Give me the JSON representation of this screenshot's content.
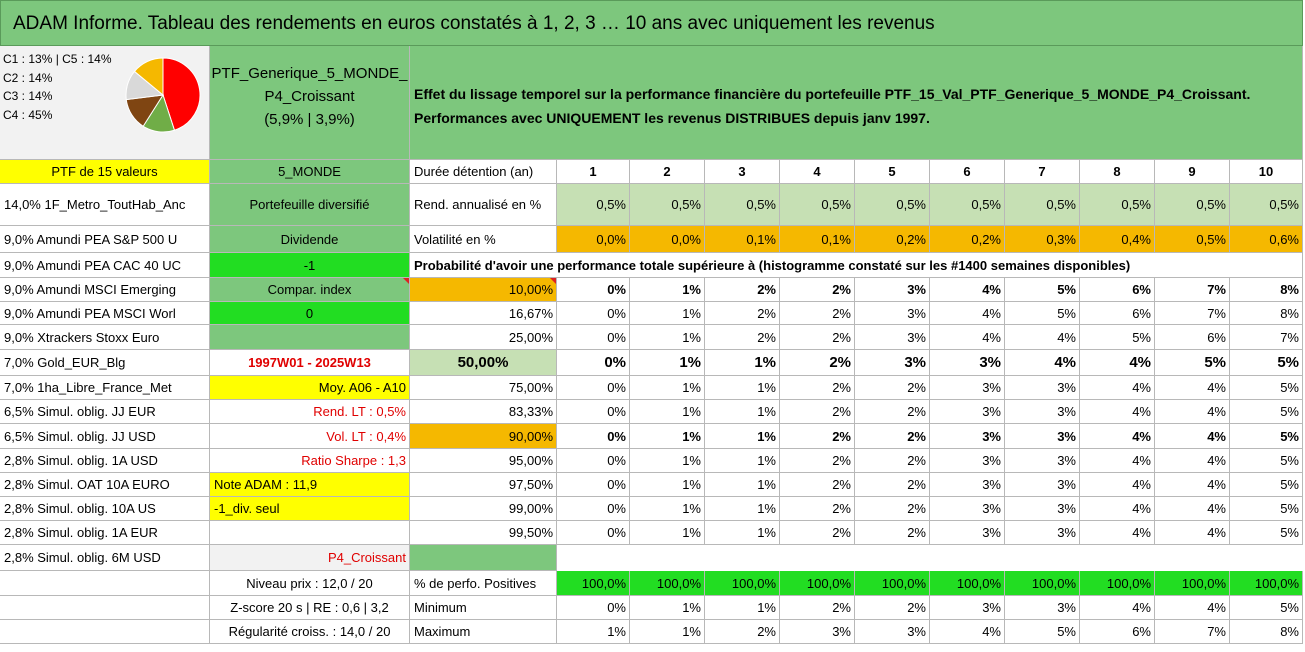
{
  "title": "ADAM Informe. Tableau des rendements en euros constatés à 1, 2, 3 … 10 ans avec uniquement les revenus",
  "classes": [
    "C1 : 13% | C5 : 14%",
    "C2 : 14%",
    "C3 : 14%",
    "C4 : 45%"
  ],
  "pie": [
    {
      "label": "C4",
      "value": 45,
      "color": "#ff0000"
    },
    {
      "label": "C3",
      "value": 14,
      "color": "#70ad47"
    },
    {
      "label": "C2",
      "value": 14,
      "color": "#7f4512"
    },
    {
      "label": "C1",
      "value": 13,
      "color": "#d9d9d9"
    },
    {
      "label": "C5",
      "value": 14,
      "color": "#f5b800"
    }
  ],
  "portfolio": {
    "name_line1": "PTF_Generique_5_MONDE_",
    "name_line2": "P4_Croissant",
    "name_line3": "(5,9% | 3,9%)",
    "zone": "5_MONDE",
    "type": "Portefeuille diversifié",
    "dividend": "Dividende",
    "dividend_val": "-1",
    "compar": "Compar. index",
    "compar_val": "0",
    "period": "1997W01 - 2025W13",
    "moy": "Moy. A06 - A10",
    "rend_lt": "Rend. LT : 0,5%",
    "vol_lt": "Vol. LT : 0,4%",
    "sharpe": "Ratio Sharpe : 1,3",
    "note": "Note ADAM : 11,9",
    "div_seul": "-1_div. seul",
    "profile": "P4_Croissant",
    "niveau": "Niveau prix : 12,0 / 20",
    "zscore": "Z-score 20 s | RE : 0,6 | 3,2",
    "regularite": "Régularité croiss. : 14,0 / 20"
  },
  "description_line1": "Effet du lissage temporel sur la performance financière du portefeuille PTF_15_Val_PTF_Generique_5_MONDE_P4_Croissant.",
  "description_line2": "Performances avec UNIQUEMENT les revenus DISTRIBUES depuis janv 1997.",
  "ptf_header": "PTF de 15 valeurs",
  "holdings": [
    "14,0% 1F_Metro_ToutHab_Anc",
    "9,0% Amundi PEA S&P 500 U",
    "9,0% Amundi PEA CAC 40 UC",
    "9,0% Amundi MSCI Emerging",
    "9,0% Amundi PEA MSCI Worl",
    "9,0% Xtrackers Stoxx Euro",
    "7,0% Gold_EUR_Blg",
    "7,0% 1ha_Libre_France_Met",
    "6,5% Simul. oblig. JJ EUR",
    "6,5% Simul. oblig. JJ USD",
    "2,8% Simul. oblig. 1A USD",
    "2,8% Simul. OAT 10A EURO",
    "2,8% Simul. oblig. 10A US",
    "2,8% Simul. oblig. 1A EUR",
    "2,8% Simul. oblig. 6M USD"
  ],
  "stats": {
    "duree_label": "Durée détention (an)",
    "years": [
      "1",
      "2",
      "3",
      "4",
      "5",
      "6",
      "7",
      "8",
      "9",
      "10"
    ],
    "rend_label": "Rend. annualisé en %",
    "rend": [
      "0,5%",
      "0,5%",
      "0,5%",
      "0,5%",
      "0,5%",
      "0,5%",
      "0,5%",
      "0,5%",
      "0,5%",
      "0,5%"
    ],
    "vol_label": "Volatilité en %",
    "vol": [
      "0,0%",
      "0,0%",
      "0,1%",
      "0,1%",
      "0,2%",
      "0,2%",
      "0,3%",
      "0,4%",
      "0,5%",
      "0,6%"
    ],
    "prob_title": "Probabilité d'avoir une performance totale supérieure à (histogramme constaté sur les #1400 semaines disponibles)"
  },
  "quantiles": [
    {
      "p": "10,00%",
      "v": [
        "0%",
        "1%",
        "2%",
        "2%",
        "3%",
        "4%",
        "5%",
        "6%",
        "7%",
        "8%"
      ]
    },
    {
      "p": "16,67%",
      "v": [
        "0%",
        "1%",
        "2%",
        "2%",
        "3%",
        "4%",
        "5%",
        "6%",
        "7%",
        "8%"
      ]
    },
    {
      "p": "25,00%",
      "v": [
        "0%",
        "1%",
        "2%",
        "2%",
        "3%",
        "4%",
        "4%",
        "5%",
        "6%",
        "7%"
      ]
    },
    {
      "p": "50,00%",
      "v": [
        "0%",
        "1%",
        "1%",
        "2%",
        "3%",
        "3%",
        "4%",
        "4%",
        "5%",
        "5%"
      ]
    },
    {
      "p": "75,00%",
      "v": [
        "0%",
        "1%",
        "1%",
        "2%",
        "2%",
        "3%",
        "3%",
        "4%",
        "4%",
        "5%"
      ]
    },
    {
      "p": "83,33%",
      "v": [
        "0%",
        "1%",
        "1%",
        "2%",
        "2%",
        "3%",
        "3%",
        "4%",
        "4%",
        "5%"
      ]
    },
    {
      "p": "90,00%",
      "v": [
        "0%",
        "1%",
        "1%",
        "2%",
        "2%",
        "3%",
        "3%",
        "4%",
        "4%",
        "5%"
      ]
    },
    {
      "p": "95,00%",
      "v": [
        "0%",
        "1%",
        "1%",
        "2%",
        "2%",
        "3%",
        "3%",
        "4%",
        "4%",
        "5%"
      ]
    },
    {
      "p": "97,50%",
      "v": [
        "0%",
        "1%",
        "1%",
        "2%",
        "2%",
        "3%",
        "3%",
        "4%",
        "4%",
        "5%"
      ]
    },
    {
      "p": "99,00%",
      "v": [
        "0%",
        "1%",
        "1%",
        "2%",
        "2%",
        "3%",
        "3%",
        "4%",
        "4%",
        "5%"
      ]
    },
    {
      "p": "99,50%",
      "v": [
        "0%",
        "1%",
        "1%",
        "2%",
        "2%",
        "3%",
        "3%",
        "4%",
        "4%",
        "5%"
      ]
    }
  ],
  "bottom": {
    "pos_label": "% de perfo. Positives",
    "pos": [
      "100,0%",
      "100,0%",
      "100,0%",
      "100,0%",
      "100,0%",
      "100,0%",
      "100,0%",
      "100,0%",
      "100,0%",
      "100,0%"
    ],
    "min_label": "Minimum",
    "min": [
      "0%",
      "1%",
      "1%",
      "2%",
      "2%",
      "3%",
      "3%",
      "4%",
      "4%",
      "5%"
    ],
    "max_label": "Maximum",
    "max": [
      "1%",
      "1%",
      "2%",
      "3%",
      "3%",
      "4%",
      "5%",
      "6%",
      "7%",
      "8%"
    ]
  }
}
